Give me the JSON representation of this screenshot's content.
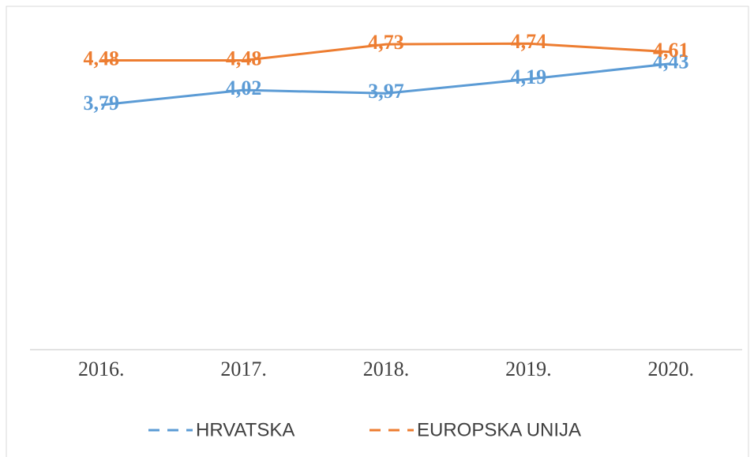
{
  "chart_data": {
    "type": "line",
    "categories": [
      "2016.",
      "2017.",
      "2018.",
      "2019.",
      "2020."
    ],
    "series": [
      {
        "name": "HRVATSKA",
        "color": "#5b9bd5",
        "values": [
          3.79,
          4.02,
          3.97,
          4.19,
          4.43
        ],
        "value_labels": [
          "3,79",
          "4,02",
          "3,97",
          "4,19",
          "4,43"
        ]
      },
      {
        "name": "EUROPSKA UNIJA",
        "color": "#ed7d31",
        "values": [
          4.48,
          4.48,
          4.73,
          4.74,
          4.61
        ],
        "value_labels": [
          "4,48",
          "4,48",
          "4,73",
          "4,74",
          "4,61"
        ]
      }
    ],
    "ylim": [
      0,
      5
    ],
    "grid": false,
    "legend": "bottom"
  }
}
